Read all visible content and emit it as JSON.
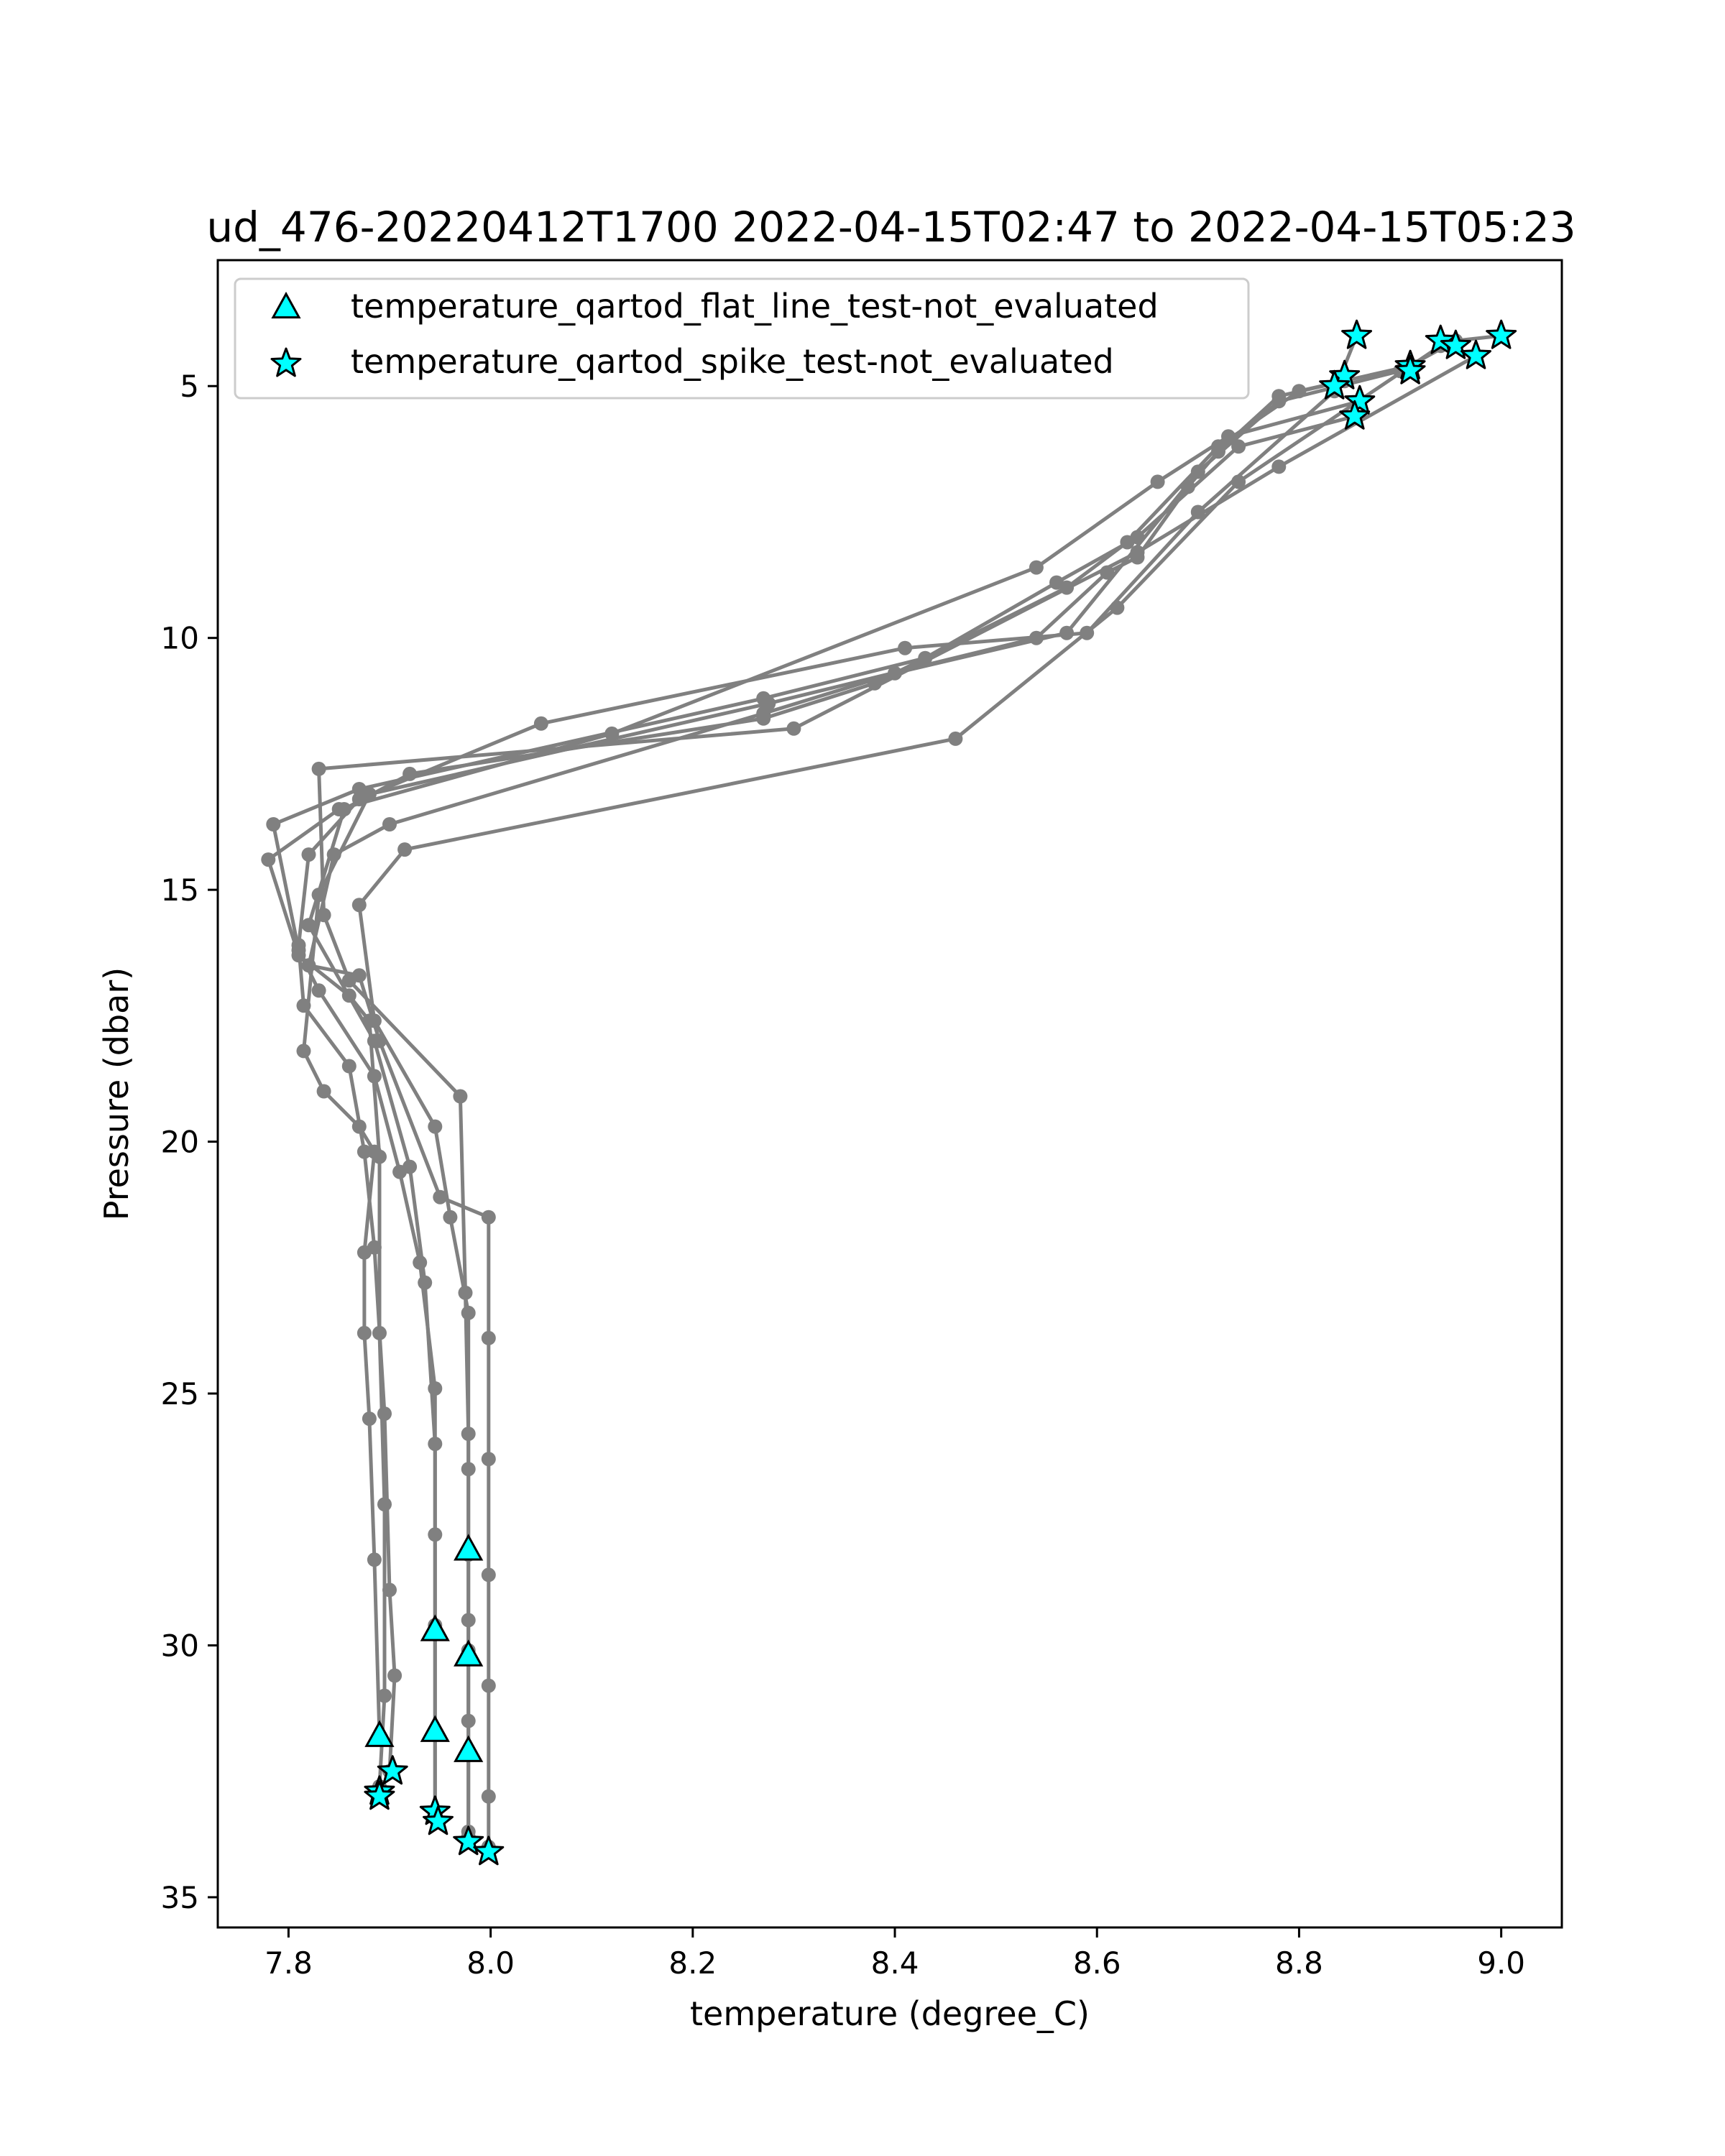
{
  "chart_data": {
    "type": "scatter",
    "title": "ud_476-20220412T1700 2022-04-15T02:47 to 2022-04-15T05:23",
    "xlabel": "temperature (degree_C)",
    "ylabel": "Pressure (dbar)",
    "xlim": [
      7.73,
      9.06
    ],
    "ylim": [
      35.6,
      2.5
    ],
    "y_inverted": true,
    "xticks": [
      7.8,
      8.0,
      8.2,
      8.4,
      8.6,
      8.8,
      9.0
    ],
    "xtick_labels": [
      "7.8",
      "8.0",
      "8.2",
      "8.4",
      "8.6",
      "8.8",
      "9.0"
    ],
    "yticks": [
      5,
      10,
      15,
      20,
      25,
      30,
      35
    ],
    "ytick_labels": [
      "5",
      "10",
      "15",
      "20",
      "25",
      "30",
      "35"
    ],
    "grid": false,
    "legend_position": "top-left",
    "colors": {
      "profile_line": "#808080",
      "marker_fill": "#00ffff",
      "marker_edge": "#000000"
    },
    "legend": [
      {
        "label": "temperature_qartod_flat_line_test-not_evaluated",
        "marker": "triangle"
      },
      {
        "label": "temperature_qartod_spike_test-not_evaluated",
        "marker": "star"
      }
    ],
    "profiles": [
      {
        "points": [
          [
            8.857,
            4.0
          ],
          [
            8.835,
            5.1
          ],
          [
            8.7,
            7.5
          ],
          [
            8.59,
            9.9
          ],
          [
            8.41,
            10.2
          ],
          [
            8.05,
            11.7
          ],
          [
            7.87,
            13.2
          ],
          [
            7.82,
            14.3
          ],
          [
            7.81,
            16.1
          ],
          [
            7.815,
            17.3
          ],
          [
            7.86,
            18.5
          ],
          [
            7.875,
            20.2
          ],
          [
            7.885,
            22.1
          ],
          [
            7.895,
            25.4
          ],
          [
            7.9,
            28.9
          ],
          [
            7.905,
            30.6
          ],
          [
            7.9,
            32.5
          ]
        ]
      },
      {
        "points": [
          [
            8.855,
            5.6
          ],
          [
            8.74,
            6.2
          ],
          [
            8.64,
            8.0
          ],
          [
            8.56,
            8.9
          ],
          [
            8.43,
            10.4
          ],
          [
            8.27,
            11.2
          ],
          [
            7.87,
            13.0
          ],
          [
            7.785,
            13.7
          ],
          [
            7.81,
            16.2
          ],
          [
            7.83,
            17.0
          ],
          [
            7.885,
            18.7
          ],
          [
            7.91,
            20.6
          ],
          [
            7.93,
            22.4
          ],
          [
            7.945,
            24.9
          ],
          [
            7.945,
            27.8
          ],
          [
            7.945,
            29.7
          ],
          [
            7.945,
            31.7
          ],
          [
            7.945,
            33.3
          ]
        ]
      },
      {
        "points": [
          [
            8.86,
            5.3
          ],
          [
            8.73,
            6.0
          ],
          [
            8.66,
            6.9
          ],
          [
            8.54,
            8.6
          ],
          [
            8.12,
            11.9
          ],
          [
            7.85,
            13.4
          ],
          [
            7.78,
            14.4
          ],
          [
            7.81,
            16.3
          ],
          [
            7.86,
            17.1
          ],
          [
            7.88,
            17.6
          ],
          [
            7.89,
            20.3
          ],
          [
            7.89,
            23.8
          ],
          [
            7.895,
            27.2
          ],
          [
            7.895,
            31.0
          ],
          [
            7.89,
            32.8
          ]
        ]
      },
      {
        "points": [
          [
            8.845,
            4.9
          ],
          [
            8.78,
            5.2
          ],
          [
            8.72,
            6.3
          ],
          [
            8.69,
            7.0
          ],
          [
            8.64,
            8.4
          ],
          [
            8.61,
            8.7
          ],
          [
            8.54,
            10.0
          ],
          [
            8.275,
            11.3
          ],
          [
            7.88,
            13.1
          ],
          [
            7.83,
            15.1
          ],
          [
            7.815,
            18.2
          ],
          [
            7.835,
            19.0
          ],
          [
            7.87,
            19.7
          ],
          [
            7.885,
            20.2
          ],
          [
            7.875,
            22.2
          ],
          [
            7.875,
            23.8
          ],
          [
            7.88,
            25.5
          ],
          [
            7.885,
            28.3
          ],
          [
            7.89,
            31.8
          ]
        ]
      },
      {
        "points": [
          [
            8.91,
            4.6
          ],
          [
            8.8,
            5.1
          ],
          [
            8.72,
            6.2
          ],
          [
            8.63,
            8.1
          ],
          [
            8.57,
            9.0
          ],
          [
            8.38,
            10.9
          ],
          [
            8.27,
            11.6
          ],
          [
            7.92,
            12.7
          ],
          [
            7.855,
            13.4
          ],
          [
            7.82,
            15.7
          ],
          [
            7.885,
            18.0
          ],
          [
            7.92,
            20.5
          ],
          [
            7.935,
            22.8
          ],
          [
            7.945,
            26.0
          ],
          [
            7.945,
            29.6
          ],
          [
            7.945,
            33.4
          ]
        ]
      },
      {
        "points": [
          [
            8.975,
            4.4
          ],
          [
            8.78,
            6.6
          ],
          [
            8.64,
            8.3
          ],
          [
            8.3,
            11.8
          ],
          [
            7.83,
            12.6
          ],
          [
            7.835,
            15.5
          ],
          [
            7.86,
            16.8
          ],
          [
            7.97,
            19.1
          ],
          [
            7.975,
            23.0
          ],
          [
            7.978,
            25.8
          ],
          [
            7.978,
            28.2
          ],
          [
            7.978,
            30.1
          ],
          [
            7.978,
            32.1
          ],
          [
            7.978,
            33.8
          ]
        ]
      },
      {
        "points": [
          [
            8.94,
            4.2
          ],
          [
            8.74,
            6.9
          ],
          [
            8.62,
            9.4
          ],
          [
            8.46,
            12.0
          ],
          [
            7.915,
            14.2
          ],
          [
            7.87,
            15.3
          ],
          [
            7.885,
            17.6
          ],
          [
            7.945,
            19.7
          ],
          [
            7.96,
            21.5
          ],
          [
            7.978,
            23.4
          ],
          [
            7.978,
            26.5
          ],
          [
            7.978,
            29.5
          ],
          [
            7.978,
            31.5
          ],
          [
            7.978,
            33.7
          ]
        ]
      },
      {
        "points": [
          [
            9.0,
            4.0
          ],
          [
            8.955,
            4.1
          ],
          [
            8.9,
            4.7
          ],
          [
            8.78,
            5.3
          ],
          [
            8.7,
            6.7
          ],
          [
            8.57,
            9.9
          ],
          [
            8.4,
            10.7
          ],
          [
            8.27,
            11.5
          ],
          [
            7.9,
            13.7
          ],
          [
            7.845,
            14.3
          ],
          [
            7.82,
            16.5
          ],
          [
            7.87,
            16.7
          ],
          [
            7.89,
            18.0
          ],
          [
            7.95,
            21.1
          ],
          [
            7.998,
            21.5
          ],
          [
            7.998,
            23.9
          ],
          [
            7.998,
            26.3
          ],
          [
            7.998,
            28.6
          ],
          [
            7.998,
            30.8
          ],
          [
            7.998,
            33.0
          ],
          [
            7.998,
            34.0
          ]
        ]
      }
    ],
    "flat_line_points": [
      [
        7.978,
        28.1
      ],
      [
        7.945,
        29.7
      ],
      [
        7.978,
        30.2
      ],
      [
        7.89,
        31.8
      ],
      [
        7.945,
        31.7
      ],
      [
        7.978,
        32.1
      ]
    ],
    "spike_points": [
      [
        8.857,
        4.0
      ],
      [
        8.94,
        4.1
      ],
      [
        8.955,
        4.2
      ],
      [
        9.0,
        4.0
      ],
      [
        8.975,
        4.4
      ],
      [
        8.91,
        4.6
      ],
      [
        8.91,
        4.7
      ],
      [
        8.845,
        4.8
      ],
      [
        8.835,
        5.0
      ],
      [
        8.86,
        5.3
      ],
      [
        8.855,
        5.6
      ],
      [
        7.903,
        32.5
      ],
      [
        7.89,
        32.9
      ],
      [
        7.89,
        33.0
      ],
      [
        7.945,
        33.3
      ],
      [
        7.948,
        33.5
      ],
      [
        7.978,
        33.9
      ],
      [
        7.998,
        34.1
      ]
    ]
  }
}
